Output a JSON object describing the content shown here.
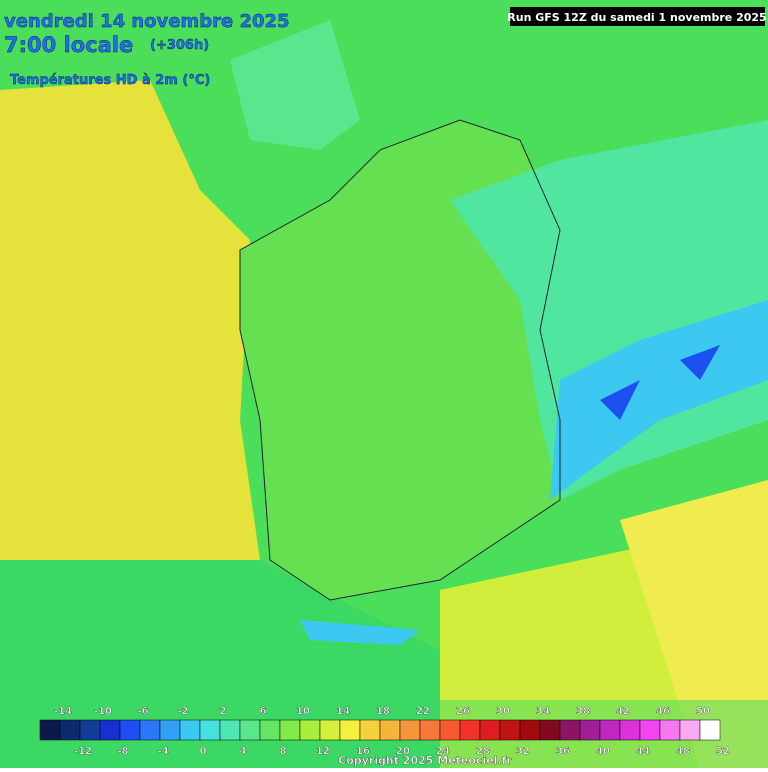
{
  "header": {
    "date": "vendredi 14 novembre 2025",
    "time": "7:00 locale",
    "lead": "(+306h)",
    "field": "Températures HD à 2m (°C)",
    "run": "Run GFS 12Z du samedi 1 novembre 2025"
  },
  "scale": {
    "colors": [
      "#0a1a4a",
      "#0c2a6e",
      "#123c96",
      "#1a2fd0",
      "#1c50f0",
      "#2a78f5",
      "#32a0f5",
      "#3cc8f0",
      "#46e0e0",
      "#50e6b4",
      "#5ae68c",
      "#64e664",
      "#82ea4a",
      "#a8ee3c",
      "#d2f03c",
      "#f5f03c",
      "#f5d23c",
      "#f5b43c",
      "#f5963c",
      "#f5783c",
      "#f55a32",
      "#f03228",
      "#dc1e1e",
      "#be1414",
      "#a00a0a",
      "#820a1e",
      "#8c1464",
      "#a01e96",
      "#be28be",
      "#dc32dc",
      "#f046f0",
      "#f578f0",
      "#faaaf5",
      "#ffffff"
    ],
    "top_labels": [
      -14,
      -10,
      -6,
      -2,
      2,
      6,
      10,
      14,
      18,
      22,
      26,
      30,
      34,
      38,
      42,
      46,
      50
    ],
    "bottom_labels": [
      -12,
      -8,
      -4,
      0,
      4,
      8,
      12,
      16,
      20,
      24,
      28,
      32,
      36,
      40,
      44,
      48,
      52
    ]
  },
  "footer": {
    "copyright": "Copyright 2025 Meteociel.fr"
  }
}
